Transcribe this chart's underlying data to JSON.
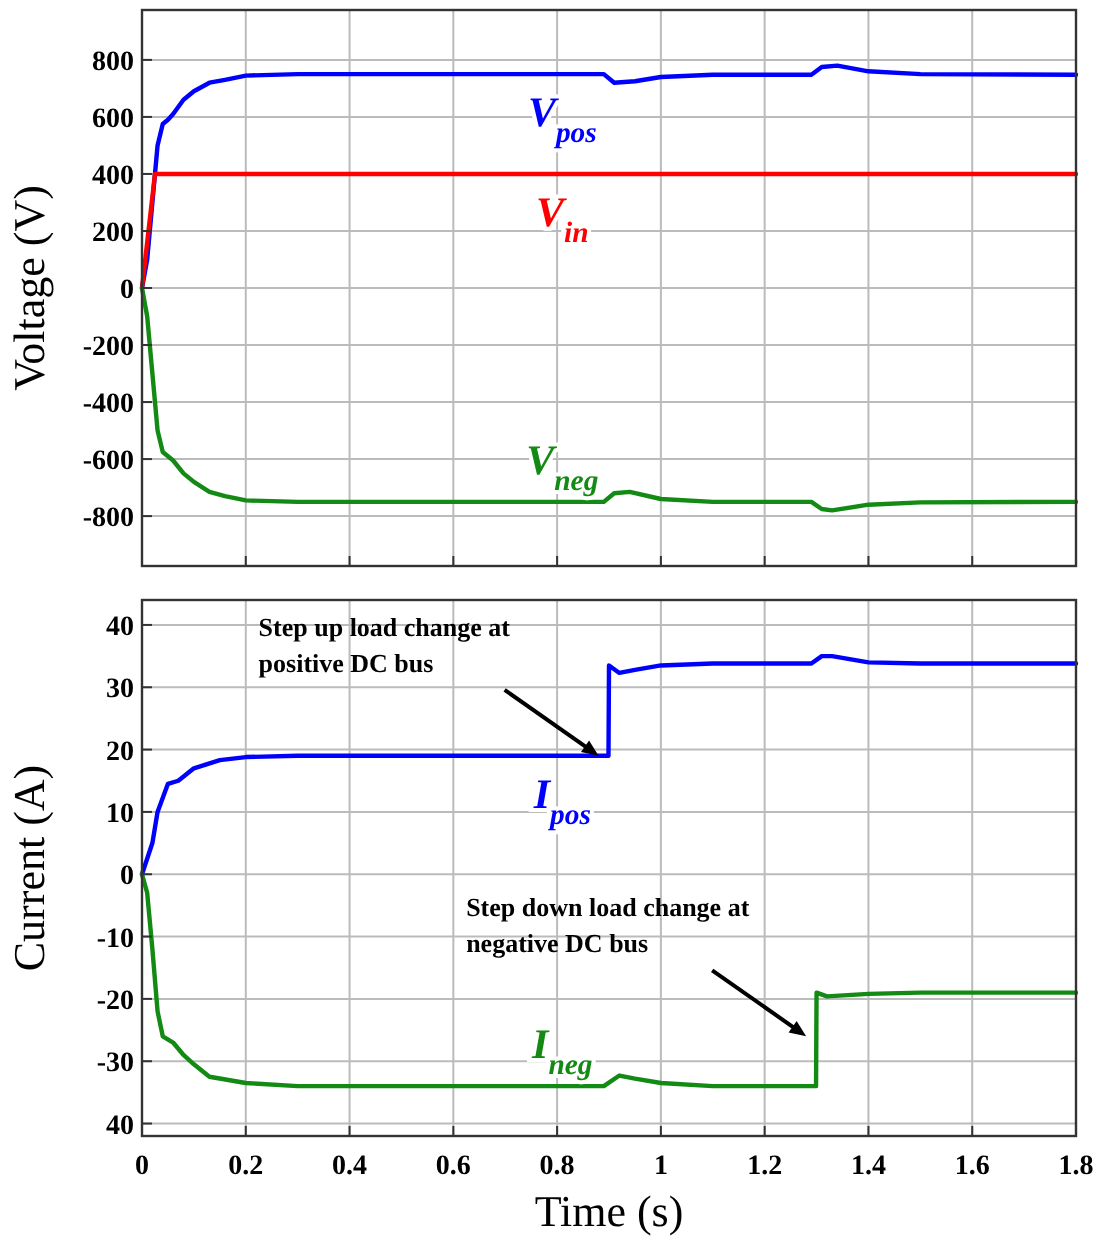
{
  "chart_data": [
    {
      "type": "line",
      "ylabel": "Voltage (V)",
      "xlim": [
        0,
        1.8
      ],
      "xticks": [
        0,
        0.2,
        0.4,
        0.6,
        0.8,
        1,
        1.2,
        1.4,
        1.6,
        1.8
      ],
      "ylim": [
        -975,
        975
      ],
      "yticks": [
        -800,
        -600,
        -400,
        -200,
        0,
        200,
        400,
        600,
        800
      ],
      "grid": true,
      "tick_labels": "y",
      "series": [
        {
          "name": "V$_{pos}$",
          "color": "#0000ff",
          "x": [
            0,
            0.01,
            0.02,
            0.03,
            0.04,
            0.05,
            0.06,
            0.08,
            0.1,
            0.13,
            0.16,
            0.2,
            0.3,
            0.89,
            0.91,
            0.95,
            1.0,
            1.1,
            1.29,
            1.31,
            1.34,
            1.4,
            1.5,
            1.8
          ],
          "values": [
            0,
            100,
            300,
            500,
            575,
            590,
            610,
            660,
            690,
            720,
            730,
            745,
            750,
            750,
            720,
            725,
            740,
            748,
            748,
            775,
            780,
            760,
            750,
            748
          ]
        },
        {
          "name": "V$_{in}$",
          "color": "#ff0000",
          "x": [
            0,
            0.025,
            1.8
          ],
          "values": [
            0,
            400,
            400
          ]
        },
        {
          "name": "V$_{neg}$",
          "color": "#138a13",
          "x": [
            0,
            0.01,
            0.02,
            0.03,
            0.04,
            0.05,
            0.06,
            0.08,
            0.1,
            0.13,
            0.16,
            0.2,
            0.3,
            0.89,
            0.91,
            0.94,
            1.0,
            1.1,
            1.29,
            1.31,
            1.33,
            1.4,
            1.5,
            1.8
          ],
          "values": [
            0,
            -100,
            -300,
            -500,
            -575,
            -590,
            -605,
            -650,
            -680,
            -715,
            -730,
            -745,
            -750,
            -750,
            -720,
            -715,
            -740,
            -750,
            -750,
            -775,
            -780,
            -760,
            -752,
            -750
          ]
        }
      ]
    },
    {
      "type": "line",
      "xlabel": "Time (s)",
      "ylabel": "Current (A)",
      "xlim": [
        0,
        1.8
      ],
      "xticks": [
        0,
        0.2,
        0.4,
        0.6,
        0.8,
        1,
        1.2,
        1.4,
        1.6,
        1.8
      ],
      "ylim": [
        -42,
        44
      ],
      "yticks": [
        {
          "value": -40,
          "label": "40"
        },
        -30,
        -20,
        -10,
        0,
        10,
        20,
        30,
        40
      ],
      "grid": true,
      "annotations": [
        {
          "text": "Step up load change at\npositive DC bus",
          "x": 0.88,
          "y": 19
        },
        {
          "text": "Step down load change at\nnegative DC bus",
          "x": 1.28,
          "y": -26
        }
      ],
      "series": [
        {
          "name": "I$_{pos}$",
          "color": "#0000ff",
          "x": [
            0,
            0.02,
            0.03,
            0.05,
            0.07,
            0.1,
            0.15,
            0.2,
            0.3,
            0.899,
            0.9,
            0.92,
            0.95,
            1.0,
            1.1,
            1.29,
            1.31,
            1.33,
            1.4,
            1.5,
            1.8
          ],
          "values": [
            0,
            5,
            10,
            14.5,
            15,
            17,
            18.3,
            18.8,
            19,
            19,
            33.5,
            32.3,
            32.8,
            33.5,
            33.8,
            33.8,
            35,
            35,
            34,
            33.8,
            33.8
          ]
        },
        {
          "name": "I$_{neg}$",
          "color": "#138a13",
          "x": [
            0,
            0.01,
            0.02,
            0.03,
            0.04,
            0.06,
            0.08,
            0.1,
            0.13,
            0.2,
            0.3,
            0.89,
            0.92,
            0.95,
            1.0,
            1.1,
            1.299,
            1.3,
            1.32,
            1.4,
            1.5,
            1.8
          ],
          "values": [
            0,
            -3,
            -12,
            -22,
            -26,
            -27,
            -29,
            -30.5,
            -32.5,
            -33.5,
            -34,
            -34,
            -32.3,
            -32.8,
            -33.5,
            -34,
            -34,
            -19,
            -19.6,
            -19.2,
            -19,
            -19
          ]
        }
      ]
    }
  ]
}
